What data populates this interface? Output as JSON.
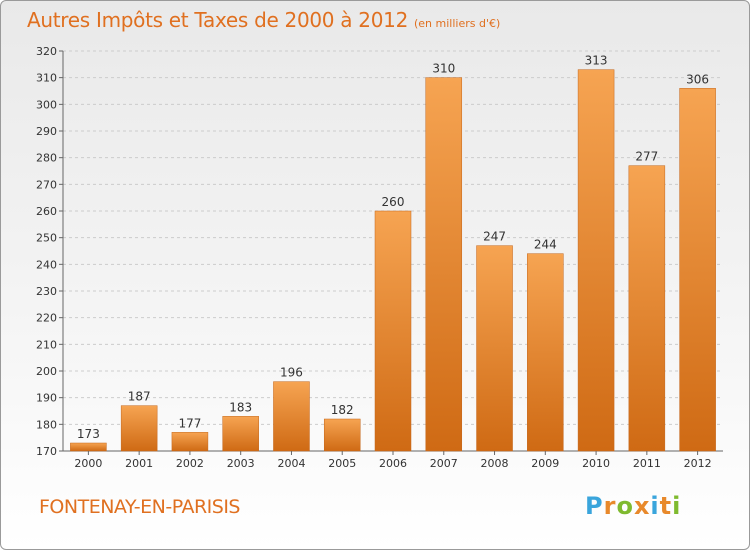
{
  "header": {
    "title": "Autres Impôts et Taxes de 2000 à 2012",
    "subtitle": "(en milliers d'€)"
  },
  "footer": {
    "city": "FONTENAY-EN-PARISIS",
    "logo_text": "Proxiti",
    "logo_colors": [
      "#3aa5dc",
      "#e8892b",
      "#7fba2f",
      "#e8892b",
      "#3aa5dc",
      "#e8892b",
      "#7fba2f"
    ]
  },
  "colors": {
    "bar_light": "#f6a452",
    "bar_dark": "#cf6a14",
    "accent": "#e07020",
    "grid": "#cccccc",
    "text": "#333333"
  },
  "chart_data": {
    "type": "bar",
    "categories": [
      "2000",
      "2001",
      "2002",
      "2003",
      "2004",
      "2005",
      "2006",
      "2007",
      "2008",
      "2009",
      "2010",
      "2011",
      "2012"
    ],
    "values": [
      173,
      187,
      177,
      183,
      196,
      182,
      260,
      310,
      247,
      244,
      313,
      277,
      306
    ],
    "title": "Autres Impôts et Taxes de 2000 à 2012",
    "subtitle": "(en milliers d'€)",
    "xlabel": "",
    "ylabel": "",
    "ylim": [
      170,
      320
    ],
    "yticks": [
      170,
      180,
      190,
      200,
      210,
      220,
      230,
      240,
      250,
      260,
      270,
      280,
      290,
      300,
      310,
      320
    ],
    "grid": true,
    "legend": "none"
  }
}
